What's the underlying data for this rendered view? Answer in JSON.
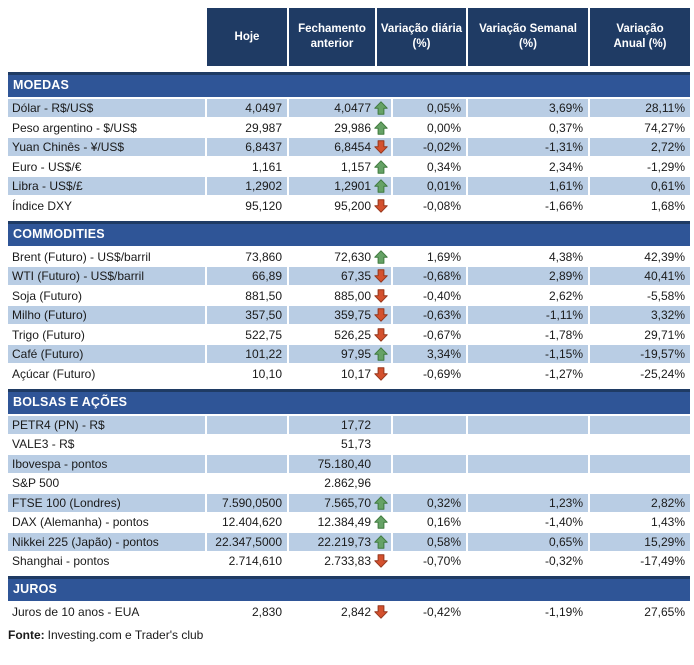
{
  "colors": {
    "header_bg": "#1f3b64",
    "section_bg": "#2f5597",
    "stripe": "#b9cde4",
    "text": "#1a1a1a",
    "up_arrow": "#66a266",
    "up_arrow_border": "#3f7a3e",
    "down_arrow": "#d4512e",
    "down_arrow_border": "#96371c"
  },
  "footer": {
    "label": "Fonte:",
    "text": "Investing.com e Trader's club"
  },
  "chart_data": {
    "type": "table",
    "columns": [
      "",
      "Hoje",
      "Fechamento\nanterior",
      "Variação diária\n(%)",
      "Variação Semanal\n(%)",
      "Variação\nAnual (%)"
    ],
    "sections": [
      {
        "title": "MOEDAS",
        "rows": [
          {
            "label": "Dólar - R$/US$",
            "hoje": "4,0497",
            "fechamento": "4,0477",
            "arrow": "up",
            "diaria": "0,05%",
            "semanal": "3,69%",
            "anual": "28,11%",
            "striped": true
          },
          {
            "label": "Peso argentino - $/US$",
            "hoje": "29,987",
            "fechamento": "29,986",
            "arrow": "up",
            "diaria": "0,00%",
            "semanal": "0,37%",
            "anual": "74,27%",
            "striped": false
          },
          {
            "label": "Yuan Chinês - ¥/US$",
            "hoje": "6,8437",
            "fechamento": "6,8454",
            "arrow": "down",
            "diaria": "-0,02%",
            "semanal": "-1,31%",
            "anual": "2,72%",
            "striped": true
          },
          {
            "label": "Euro - US$/€",
            "hoje": "1,161",
            "fechamento": "1,157",
            "arrow": "up",
            "diaria": "0,34%",
            "semanal": "2,34%",
            "anual": "-1,29%",
            "striped": false
          },
          {
            "label": "Libra - US$/£",
            "hoje": "1,2902",
            "fechamento": "1,2901",
            "arrow": "up",
            "diaria": "0,01%",
            "semanal": "1,61%",
            "anual": "0,61%",
            "striped": true
          },
          {
            "label": "Índice DXY",
            "hoje": "95,120",
            "fechamento": "95,200",
            "arrow": "down",
            "diaria": "-0,08%",
            "semanal": "-1,66%",
            "anual": "1,68%",
            "striped": false
          }
        ]
      },
      {
        "title": "COMMODITIES",
        "rows": [
          {
            "label": "Brent (Futuro) - US$/barril",
            "hoje": "73,860",
            "fechamento": "72,630",
            "arrow": "up",
            "diaria": "1,69%",
            "semanal": "4,38%",
            "anual": "42,39%",
            "striped": false
          },
          {
            "label": "WTI (Futuro) - US$/barril",
            "hoje": "66,89",
            "fechamento": "67,35",
            "arrow": "down",
            "diaria": "-0,68%",
            "semanal": "2,89%",
            "anual": "40,41%",
            "striped": true
          },
          {
            "label": "Soja (Futuro)",
            "hoje": "881,50",
            "fechamento": "885,00",
            "arrow": "down",
            "diaria": "-0,40%",
            "semanal": "2,62%",
            "anual": "-5,58%",
            "striped": false
          },
          {
            "label": "Milho (Futuro)",
            "hoje": "357,50",
            "fechamento": "359,75",
            "arrow": "down",
            "diaria": "-0,63%",
            "semanal": "-1,11%",
            "anual": "3,32%",
            "striped": true
          },
          {
            "label": "Trigo (Futuro)",
            "hoje": "522,75",
            "fechamento": "526,25",
            "arrow": "down",
            "diaria": "-0,67%",
            "semanal": "-1,78%",
            "anual": "29,71%",
            "striped": false
          },
          {
            "label": "Café (Futuro)",
            "hoje": "101,22",
            "fechamento": "97,95",
            "arrow": "up",
            "diaria": "3,34%",
            "semanal": "-1,15%",
            "anual": "-19,57%",
            "striped": true
          },
          {
            "label": "Açúcar (Futuro)",
            "hoje": "10,10",
            "fechamento": "10,17",
            "arrow": "down",
            "diaria": "-0,69%",
            "semanal": "-1,27%",
            "anual": "-25,24%",
            "striped": false
          }
        ]
      },
      {
        "title": "BOLSAS E AÇÕES",
        "rows": [
          {
            "label": "PETR4 (PN) - R$",
            "hoje": "",
            "fechamento": "17,72",
            "arrow": "",
            "diaria": "",
            "semanal": "",
            "anual": "",
            "striped": true
          },
          {
            "label": "VALE3 - R$",
            "hoje": "",
            "fechamento": "51,73",
            "arrow": "",
            "diaria": "",
            "semanal": "",
            "anual": "",
            "striped": false
          },
          {
            "label": "Ibovespa - pontos",
            "hoje": "",
            "fechamento": "75.180,40",
            "arrow": "",
            "diaria": "",
            "semanal": "",
            "anual": "",
            "striped": true
          },
          {
            "label": "S&P 500",
            "hoje": "",
            "fechamento": "2.862,96",
            "arrow": "",
            "diaria": "",
            "semanal": "",
            "anual": "",
            "striped": false
          },
          {
            "label": "FTSE 100 (Londres)",
            "hoje": "7.590,0500",
            "fechamento": "7.565,70",
            "arrow": "up",
            "diaria": "0,32%",
            "semanal": "1,23%",
            "anual": "2,82%",
            "striped": true
          },
          {
            "label": "DAX (Alemanha) - pontos",
            "hoje": "12.404,620",
            "fechamento": "12.384,49",
            "arrow": "up",
            "diaria": "0,16%",
            "semanal": "-1,40%",
            "anual": "1,43%",
            "striped": false
          },
          {
            "label": "Nikkei 225 (Japão) - pontos",
            "hoje": "22.347,5000",
            "fechamento": "22.219,73",
            "arrow": "up",
            "diaria": "0,58%",
            "semanal": "0,65%",
            "anual": "15,29%",
            "striped": true
          },
          {
            "label": "Shanghai - pontos",
            "hoje": "2.714,610",
            "fechamento": "2.733,83",
            "arrow": "down",
            "diaria": "-0,70%",
            "semanal": "-0,32%",
            "anual": "-17,49%",
            "striped": false
          }
        ]
      },
      {
        "title": "JUROS",
        "rows": [
          {
            "label": "Juros de 10 anos - EUA",
            "hoje": "2,830",
            "fechamento": "2,842",
            "arrow": "down",
            "diaria": "-0,42%",
            "semanal": "-1,19%",
            "anual": "27,65%",
            "striped": false
          }
        ]
      }
    ]
  }
}
